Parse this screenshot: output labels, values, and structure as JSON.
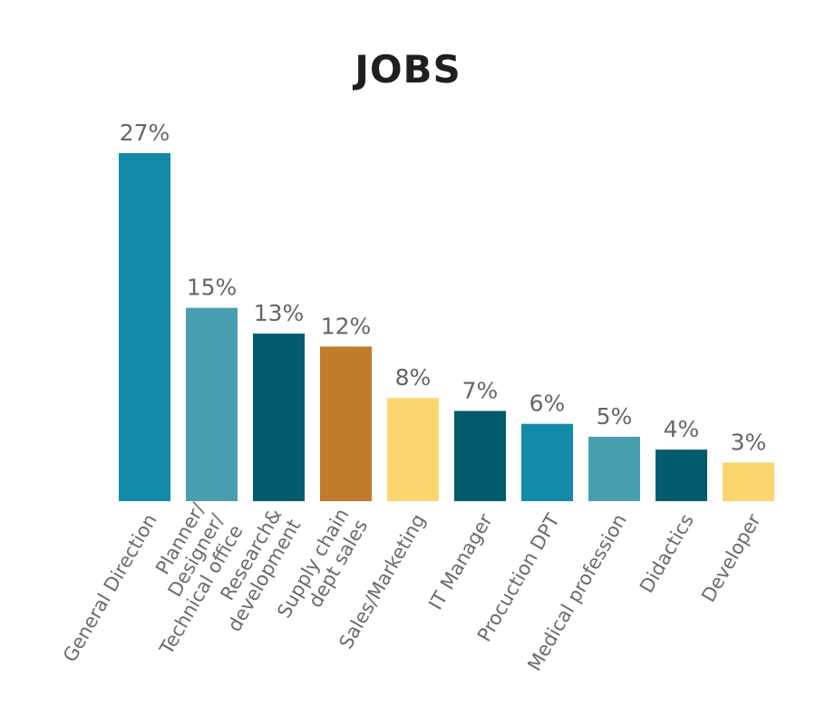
{
  "chart_data": {
    "type": "bar",
    "title": "JOBS",
    "xlabel": "",
    "ylabel": "",
    "ylim": [
      0,
      27
    ],
    "categories": [
      [
        "General Direction"
      ],
      [
        "Planner/",
        "Designer/",
        "Technical office"
      ],
      [
        "Research&",
        "development"
      ],
      [
        "Supply chain",
        "dept sales"
      ],
      [
        "Sales/Marketing"
      ],
      [
        "IT Manager"
      ],
      [
        "Procuction DPT"
      ],
      [
        "Medical profession"
      ],
      [
        "Didactics"
      ],
      [
        "Developer"
      ]
    ],
    "values": [
      27,
      15,
      13,
      12,
      8,
      7,
      6,
      5,
      4,
      3
    ],
    "value_labels": [
      "27%",
      "15%",
      "13%",
      "12%",
      "8%",
      "7%",
      "6%",
      "5%",
      "4%",
      "3%"
    ],
    "colors": [
      "#138ba8",
      "#489fb0",
      "#035c6e",
      "#c07b2c",
      "#fbd66f",
      "#035c6e",
      "#138ba8",
      "#489fb0",
      "#035c6e",
      "#fbd66f"
    ]
  }
}
